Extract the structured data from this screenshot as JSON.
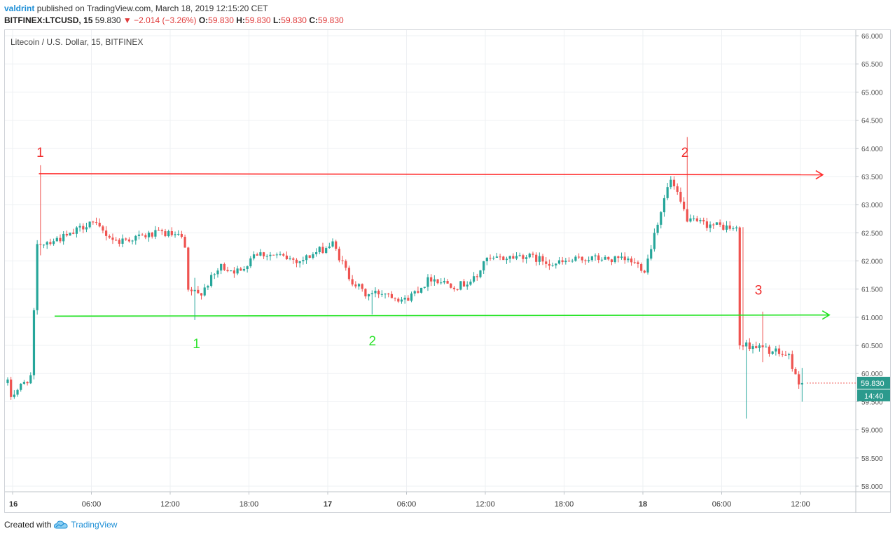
{
  "header": {
    "author": "valdrint",
    "published": "published on TradingView.com, March 18, 2019 12:15:20 CET"
  },
  "ohlc": {
    "symbol": "BITFINEX:LTCUSD, 15",
    "last": "59.830",
    "arrow": "▼",
    "change": "−2.014 (−3.26%)",
    "o_label": "O:",
    "o": "59.830",
    "h_label": "H:",
    "h": "59.830",
    "l_label": "L:",
    "l": "59.830",
    "c_label": "C:",
    "c": "59.830"
  },
  "footer": {
    "created_with": "Created with",
    "brand": "TradingView",
    "logo_icon": "tradingview-cloud-icon"
  },
  "colors": {
    "up": "#26a69a",
    "down": "#ef5350",
    "resistance": "#ff2a2a",
    "support": "#22e322",
    "grid": "#eef0f3",
    "axis_text": "#555555"
  },
  "chart_data": {
    "type": "candlestick",
    "title": "Litecoin / U.S. Dollar, 15, BITFINEX",
    "ylim": [
      57.9,
      66.1
    ],
    "y_ticks": [
      "66.000",
      "65.500",
      "65.000",
      "64.500",
      "64.000",
      "63.500",
      "63.000",
      "62.500",
      "62.000",
      "61.500",
      "61.000",
      "60.500",
      "60.000",
      "59.500",
      "59.000",
      "58.500",
      "58.000"
    ],
    "x_ticks": [
      {
        "h": 0,
        "label": "16"
      },
      {
        "h": 6,
        "label": "06:00"
      },
      {
        "h": 12,
        "label": "12:00"
      },
      {
        "h": 18,
        "label": "18:00"
      },
      {
        "h": 24,
        "label": "17"
      },
      {
        "h": 30,
        "label": "06:00"
      },
      {
        "h": 36,
        "label": "12:00"
      },
      {
        "h": 42,
        "label": "18:00"
      },
      {
        "h": 48,
        "label": "18"
      },
      {
        "h": 54,
        "label": "06:00"
      },
      {
        "h": 60,
        "label": "12:00"
      }
    ],
    "x_bold": [
      "16",
      "17",
      "18"
    ],
    "x_range_hours": [
      -0.3,
      63.5
    ],
    "last_price_label": "59.830",
    "countdown_label": "14:40",
    "last_price": 59.83,
    "resistance_line": {
      "h_start": 2.0,
      "h_end": 61.7,
      "y_start": 63.55,
      "y_end": 63.53
    },
    "support_line": {
      "h_start": 3.2,
      "h_end": 62.2,
      "y_start": 61.02,
      "y_end": 61.04
    },
    "annotations": [
      {
        "text": "1",
        "color": "red",
        "h": 2.1,
        "y": 63.85
      },
      {
        "text": "2",
        "color": "red",
        "h": 51.2,
        "y": 63.85
      },
      {
        "text": "3",
        "color": "red",
        "h": 56.8,
        "y": 61.4
      },
      {
        "text": "1",
        "color": "green",
        "h": 14.0,
        "y": 60.45
      },
      {
        "text": "2",
        "color": "green",
        "h": 27.4,
        "y": 60.5
      }
    ],
    "anchors": [
      [
        0,
        59.6
      ],
      [
        1.5,
        59.95
      ],
      [
        2.0,
        62.3
      ],
      [
        4.5,
        62.45
      ],
      [
        6.0,
        62.7
      ],
      [
        8.0,
        62.35
      ],
      [
        11.5,
        62.5
      ],
      [
        13.2,
        62.4
      ],
      [
        13.4,
        61.5
      ],
      [
        14.3,
        61.4
      ],
      [
        16.0,
        61.9
      ],
      [
        17.5,
        61.8
      ],
      [
        18.5,
        62.15
      ],
      [
        20.0,
        62.1
      ],
      [
        22.0,
        62.0
      ],
      [
        24.5,
        62.3
      ],
      [
        25.8,
        61.7
      ],
      [
        27.0,
        61.4
      ],
      [
        28.5,
        61.45
      ],
      [
        30.0,
        61.3
      ],
      [
        32.0,
        61.7
      ],
      [
        34.0,
        61.55
      ],
      [
        35.5,
        61.7
      ],
      [
        36.0,
        62.0
      ],
      [
        39.0,
        62.1
      ],
      [
        41.5,
        61.95
      ],
      [
        44.0,
        62.05
      ],
      [
        47.2,
        62.0
      ],
      [
        48.3,
        61.85
      ],
      [
        49.0,
        62.5
      ],
      [
        50.2,
        63.45
      ],
      [
        51.6,
        62.7
      ],
      [
        54.5,
        62.6
      ],
      [
        55.3,
        62.55
      ],
      [
        55.5,
        60.5
      ],
      [
        56.5,
        60.5
      ],
      [
        59.3,
        60.3
      ],
      [
        59.8,
        59.9
      ],
      [
        60.0,
        59.83
      ]
    ],
    "wicks": [
      {
        "h": 2.05,
        "high": 63.7,
        "low": 62.1
      },
      {
        "h": 13.75,
        "high": 61.7,
        "low": 60.95
      },
      {
        "h": 27.3,
        "high": 61.4,
        "low": 61.05
      },
      {
        "h": 51.25,
        "high": 64.2,
        "low": 63.0
      },
      {
        "h": 55.5,
        "high": 62.6,
        "low": 60.6
      },
      {
        "h": 55.75,
        "high": 60.6,
        "low": 59.2
      },
      {
        "h": 57.0,
        "high": 61.1,
        "low": 60.2
      },
      {
        "h": 60.0,
        "high": 60.1,
        "low": 59.5
      }
    ]
  }
}
